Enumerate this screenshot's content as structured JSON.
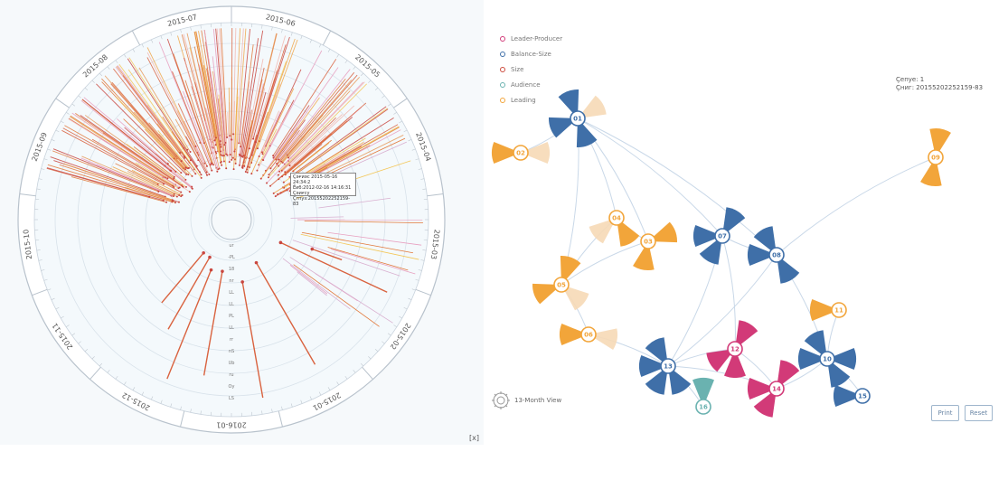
{
  "radial": {
    "date_labels": [
      "2015-06",
      "2015-05",
      "2015-04",
      "2015-03",
      "2015-02",
      "2015-01",
      "2016-01",
      "2015-12",
      "2015-11",
      "2015-10",
      "2015-09",
      "2015-08",
      "2015-07"
    ],
    "ring_labels": [
      "ur",
      "-PL",
      "18",
      "nr",
      "LL",
      "LL",
      "PL",
      "LL",
      "rr",
      "nS",
      "Ub",
      "ru",
      "Oy",
      "LS"
    ],
    "tooltip": [
      "Ҫәғиәс 2015-05-16 24:34:2",
      "Ёиб:2012-02-16 14:16:31",
      "Ҫәиғсу",
      "Ҫгпуз:20155202252159-83"
    ],
    "close_label": "[x]"
  },
  "chart_data": {
    "type": "network",
    "title": "",
    "series": [
      {
        "name": "Leader-Producer",
        "color": "#d23a78"
      },
      {
        "name": "Balance-Size",
        "color": "#3f6fa8"
      },
      {
        "name": "Size",
        "color": "#cc4a3c"
      },
      {
        "name": "Audience",
        "color": "#6ab2b0"
      },
      {
        "name": "Leading",
        "color": "#f2a53a"
      }
    ],
    "nodes": [
      {
        "id": "01",
        "label": "01",
        "group": "Balance-Size",
        "wedges": [
          3,
          3,
          3,
          1
        ]
      },
      {
        "id": "02",
        "label": "02",
        "group": "Leading",
        "wedges": [
          3,
          2
        ]
      },
      {
        "id": "03",
        "label": "03",
        "group": "Leading",
        "wedges": [
          3,
          3
        ]
      },
      {
        "id": "04",
        "label": "04",
        "group": "Leading",
        "wedges": [
          3,
          2
        ]
      },
      {
        "id": "05",
        "label": "05",
        "group": "Leading",
        "wedges": [
          3,
          3,
          2
        ]
      },
      {
        "id": "06",
        "label": "06",
        "group": "Leading",
        "wedges": [
          3,
          2
        ]
      },
      {
        "id": "07",
        "label": "07",
        "group": "Balance-Size",
        "wedges": [
          3,
          3,
          3
        ]
      },
      {
        "id": "08",
        "label": "08",
        "group": "Balance-Size",
        "wedges": [
          3,
          3,
          3
        ]
      },
      {
        "id": "09",
        "label": "09",
        "group": "Leading",
        "wedges": [
          3,
          3
        ]
      },
      {
        "id": "10",
        "label": "10",
        "group": "Balance-Size",
        "wedges": [
          3,
          3,
          3,
          3
        ]
      },
      {
        "id": "11",
        "label": "11",
        "group": "Leading",
        "wedges": [
          3
        ]
      },
      {
        "id": "12",
        "label": "12",
        "group": "Leader-Producer",
        "wedges": [
          3,
          3,
          3
        ]
      },
      {
        "id": "13",
        "label": "13",
        "group": "Balance-Size",
        "wedges": [
          3,
          3,
          3,
          3
        ]
      },
      {
        "id": "14",
        "label": "14",
        "group": "Leader-Producer",
        "wedges": [
          3,
          3,
          3
        ]
      },
      {
        "id": "15",
        "label": "15",
        "group": "Balance-Size",
        "wedges": [
          3
        ]
      },
      {
        "id": "16",
        "label": "16",
        "group": "Audience",
        "wedges": [
          3
        ]
      }
    ],
    "edges": [
      [
        "01",
        "02"
      ],
      [
        "01",
        "05"
      ],
      [
        "01",
        "07"
      ],
      [
        "01",
        "08"
      ],
      [
        "01",
        "04"
      ],
      [
        "01",
        "03"
      ],
      [
        "07",
        "13"
      ],
      [
        "07",
        "12"
      ],
      [
        "08",
        "13"
      ],
      [
        "08",
        "10"
      ],
      [
        "08",
        "09"
      ],
      [
        "08",
        "07"
      ],
      [
        "05",
        "03"
      ],
      [
        "05",
        "04"
      ],
      [
        "05",
        "06"
      ],
      [
        "13",
        "12"
      ],
      [
        "13",
        "14"
      ],
      [
        "13",
        "16"
      ],
      [
        "12",
        "14"
      ],
      [
        "10",
        "14"
      ],
      [
        "10",
        "15"
      ],
      [
        "10",
        "11"
      ],
      [
        "06",
        "13"
      ],
      [
        "03",
        "04"
      ]
    ]
  },
  "legend": [
    {
      "label": "Leader-Producer",
      "color": "#d23a78"
    },
    {
      "label": "Balance-Size",
      "color": "#3f6fa8"
    },
    {
      "label": "Size",
      "color": "#cc4a3c"
    },
    {
      "label": "Audience",
      "color": "#6ab2b0"
    },
    {
      "label": "Leading",
      "color": "#f2a53a"
    }
  ],
  "info": {
    "line1": "Ҫепуе: 1",
    "line2": "Ҫниг: 20155202252159-83"
  },
  "mini_view_label": "13-Month View",
  "buttons": {
    "print": "Print",
    "reset": "Reset"
  }
}
